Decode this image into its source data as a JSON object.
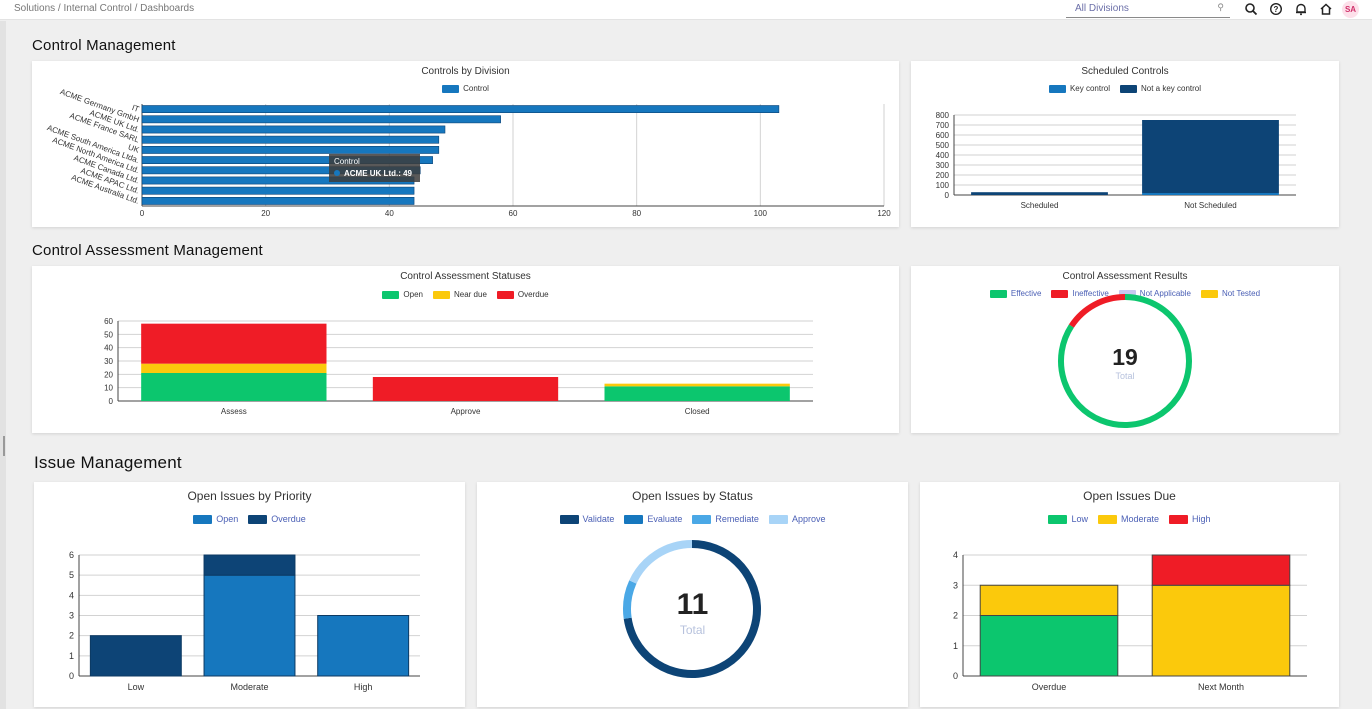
{
  "topbar": {
    "breadcrumb": "Solutions / Internal Control / Dashboards",
    "division_select": "All Divisions",
    "avatar_initials": "SA",
    "icons": [
      "search-icon",
      "help-icon",
      "bell-icon",
      "home-icon"
    ]
  },
  "sections": {
    "control_management": "Control Management",
    "control_assessment_management": "Control Assessment Management",
    "issue_management": "Issue Management"
  },
  "cards": {
    "controls_by_division": {
      "title": "Controls by Division",
      "legend": [
        "Control"
      ],
      "tooltip": {
        "title": "Control",
        "text": "ACME UK Ltd.: 49"
      }
    },
    "scheduled_controls": {
      "title": "Scheduled Controls",
      "legend": [
        "Key control",
        "Not a key control"
      ]
    },
    "assessment_statuses": {
      "title": "Control Assessment Statuses",
      "legend": [
        "Open",
        "Near due",
        "Overdue"
      ]
    },
    "assessment_results": {
      "title": "Control Assessment Results",
      "legend": [
        "Effective",
        "Ineffective",
        "Not Applicable",
        "Not Tested"
      ],
      "total": "19",
      "total_label": "Total"
    },
    "issues_by_priority": {
      "title": "Open Issues by Priority",
      "legend": [
        "Open",
        "Overdue"
      ]
    },
    "issues_by_status": {
      "title": "Open Issues by Status",
      "legend": [
        "Validate",
        "Evaluate",
        "Remediate",
        "Approve"
      ],
      "total": "11",
      "total_label": "Total"
    },
    "issues_due": {
      "title": "Open Issues Due",
      "legend": [
        "Low",
        "Moderate",
        "High"
      ]
    }
  },
  "colors": {
    "control_blue": "#1677be",
    "navy": "#0d4476",
    "green": "#0cc66e",
    "yellow": "#fbc90c",
    "red": "#ef1c26",
    "lavender": "#c8c8f0",
    "light_blue": "#4aa8e6",
    "pale_blue": "#a8d4f7"
  },
  "chart_data": [
    {
      "id": "controls_by_division",
      "type": "bar",
      "orientation": "horizontal",
      "title": "Controls by Division",
      "categories": [
        "IT",
        "ACME Germany GmbH",
        "ACME UK Ltd.",
        "ACME France SARL",
        "UK",
        "ACME South America Ltda.",
        "ACME North America Ltd.",
        "ACME Canada Ltd.",
        "ACME APAC Ltd.",
        "ACME Australia Ltd."
      ],
      "series": [
        {
          "name": "Control",
          "values": [
            103,
            58,
            49,
            48,
            48,
            47,
            45,
            44,
            44,
            44
          ]
        }
      ],
      "xlim": [
        0,
        120
      ],
      "xticks": [
        0,
        20,
        40,
        60,
        80,
        100,
        120
      ],
      "legend": "top"
    },
    {
      "id": "scheduled_controls",
      "type": "bar",
      "stacked": true,
      "title": "Scheduled Controls",
      "categories": [
        "Scheduled",
        "Not Scheduled"
      ],
      "series": [
        {
          "name": "Key control",
          "values": [
            0,
            20
          ]
        },
        {
          "name": "Not a key control",
          "values": [
            28,
            730
          ]
        }
      ],
      "ylim": [
        0,
        800
      ],
      "yticks": [
        0,
        100,
        200,
        300,
        400,
        500,
        600,
        700,
        800
      ],
      "legend": "top"
    },
    {
      "id": "control_assessment_statuses",
      "type": "bar",
      "stacked": true,
      "title": "Control Assessment Statuses",
      "categories": [
        "Assess",
        "Approve",
        "Closed"
      ],
      "series": [
        {
          "name": "Open",
          "values": [
            21,
            0,
            11
          ]
        },
        {
          "name": "Near due",
          "values": [
            7,
            0,
            2
          ]
        },
        {
          "name": "Overdue",
          "values": [
            30,
            18,
            0
          ]
        }
      ],
      "ylim": [
        0,
        60
      ],
      "yticks": [
        0,
        10,
        20,
        30,
        40,
        50,
        60
      ],
      "legend": "top"
    },
    {
      "id": "control_assessment_results",
      "type": "pie",
      "donut": true,
      "title": "Control Assessment Results",
      "labels": [
        "Effective",
        "Ineffective",
        "Not Applicable",
        "Not Tested"
      ],
      "values": [
        16,
        3,
        0,
        0
      ],
      "center_value": 19,
      "legend": "top"
    },
    {
      "id": "open_issues_by_priority",
      "type": "bar",
      "stacked": true,
      "title": "Open Issues by Priority",
      "categories": [
        "Low",
        "Moderate",
        "High"
      ],
      "series": [
        {
          "name": "Open",
          "values": [
            0,
            5,
            3
          ]
        },
        {
          "name": "Overdue",
          "values": [
            2,
            1,
            0
          ]
        }
      ],
      "ylim": [
        0,
        6
      ],
      "yticks": [
        0,
        1,
        2,
        3,
        4,
        5,
        6
      ],
      "legend": "top"
    },
    {
      "id": "open_issues_by_status",
      "type": "pie",
      "donut": true,
      "title": "Open Issues by Status",
      "labels": [
        "Validate",
        "Evaluate",
        "Remediate",
        "Approve"
      ],
      "values": [
        8,
        0,
        1,
        2
      ],
      "center_value": 11,
      "legend": "top"
    },
    {
      "id": "open_issues_due",
      "type": "bar",
      "stacked": true,
      "title": "Open Issues Due",
      "categories": [
        "Overdue",
        "Next Month"
      ],
      "series": [
        {
          "name": "Low",
          "values": [
            2,
            0
          ]
        },
        {
          "name": "Moderate",
          "values": [
            1,
            3
          ]
        },
        {
          "name": "High",
          "values": [
            0,
            1
          ]
        }
      ],
      "ylim": [
        0,
        4
      ],
      "yticks": [
        0,
        1,
        2,
        3,
        4
      ],
      "legend": "top"
    }
  ]
}
